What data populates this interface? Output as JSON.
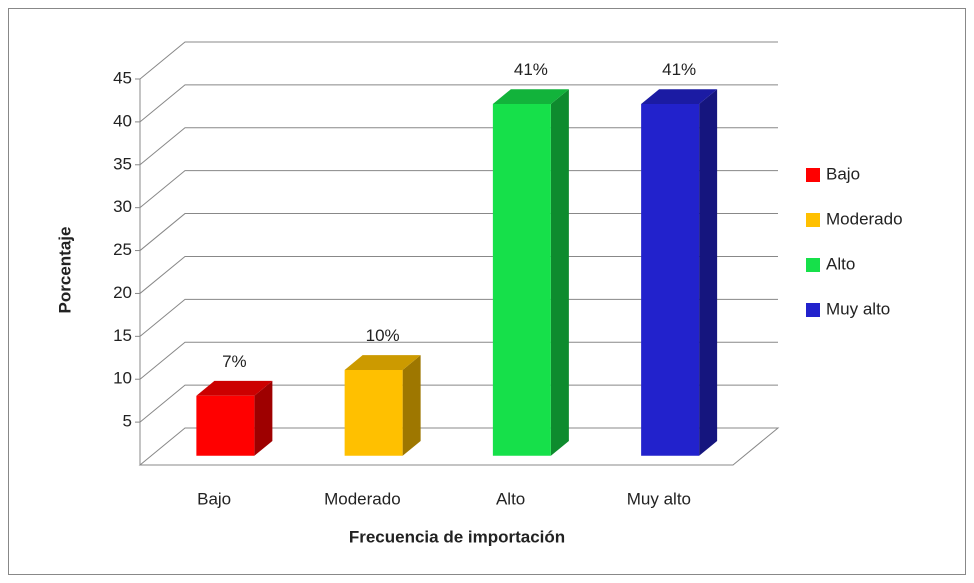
{
  "chart_data": {
    "type": "bar3d",
    "x_label": "Frecuencia de importación",
    "y_label": "Porcentaje",
    "categories": [
      "Bajo",
      "Moderado",
      "Alto",
      "Muy alto"
    ],
    "values": [
      7,
      10,
      41,
      41
    ],
    "value_labels": [
      "7%",
      "10%",
      "41%",
      "41%"
    ],
    "colors": [
      "#ff0000",
      "#ffc000",
      "#16e04a",
      "#2222cc"
    ],
    "ylim": [
      0,
      45
    ],
    "yticks": [
      5,
      10,
      15,
      20,
      25,
      30,
      35,
      40,
      45
    ],
    "grid": true,
    "legend": "right"
  }
}
